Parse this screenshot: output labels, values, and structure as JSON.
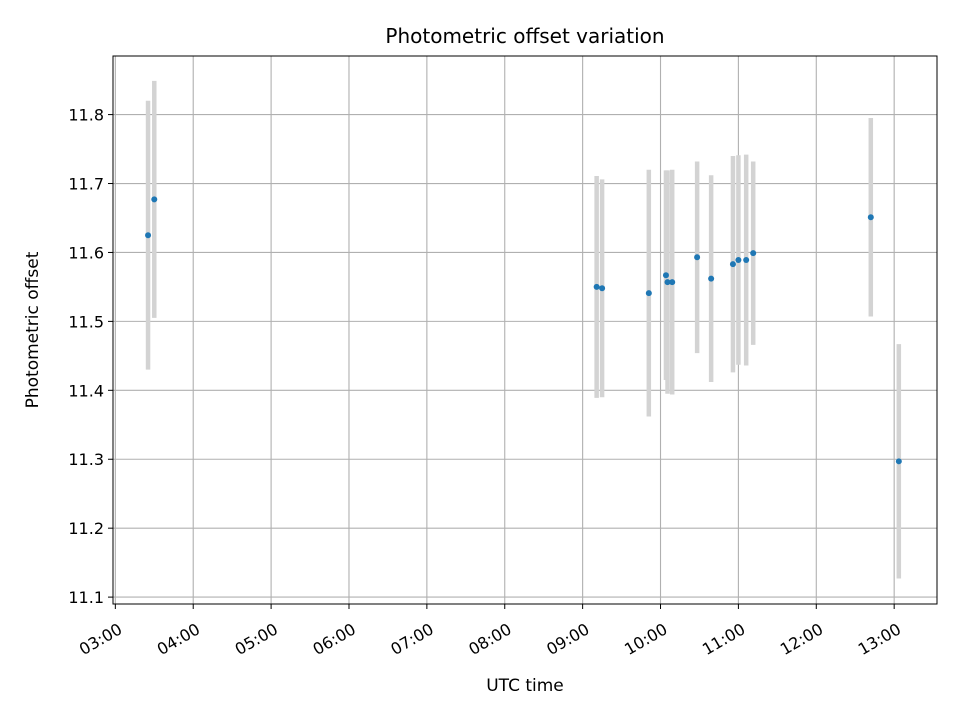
{
  "chart_data": {
    "type": "scatter",
    "title": "Photometric offset variation",
    "xlabel": "UTC time",
    "ylabel": "Photometric offset",
    "x_unit": "hour of day (UTC)",
    "xlim": [
      2.97,
      13.55
    ],
    "ylim": [
      11.09,
      11.885
    ],
    "x_ticks": [
      3,
      4,
      5,
      6,
      7,
      8,
      9,
      10,
      11,
      12,
      13
    ],
    "x_tick_labels": [
      "03:00",
      "04:00",
      "05:00",
      "06:00",
      "07:00",
      "08:00",
      "09:00",
      "10:00",
      "11:00",
      "12:00",
      "13:00"
    ],
    "y_ticks": [
      11.1,
      11.2,
      11.3,
      11.4,
      11.5,
      11.6,
      11.7,
      11.8
    ],
    "y_tick_labels": [
      "11.1",
      "11.2",
      "11.3",
      "11.4",
      "11.5",
      "11.6",
      "11.7",
      "11.8"
    ],
    "grid": true,
    "colors": {
      "points": "#1f77b4",
      "error_bars": "#d3d3d3",
      "grid": "#b0b0b0"
    },
    "series": [
      {
        "points": [
          {
            "x": 3.42,
            "y": 11.625,
            "yerr": 0.195
          },
          {
            "x": 3.5,
            "y": 11.677,
            "yerr": 0.172
          },
          {
            "x": 9.18,
            "y": 11.55,
            "yerr": 0.161
          },
          {
            "x": 9.25,
            "y": 11.548,
            "yerr": 0.158
          },
          {
            "x": 9.85,
            "y": 11.541,
            "yerr": 0.179
          },
          {
            "x": 10.07,
            "y": 11.567,
            "yerr": 0.152
          },
          {
            "x": 10.09,
            "y": 11.557,
            "yerr": 0.162
          },
          {
            "x": 10.15,
            "y": 11.557,
            "yerr": 0.163
          },
          {
            "x": 10.47,
            "y": 11.593,
            "yerr": 0.139
          },
          {
            "x": 10.65,
            "y": 11.562,
            "yerr": 0.15
          },
          {
            "x": 10.93,
            "y": 11.583,
            "yerr": 0.157
          },
          {
            "x": 11.0,
            "y": 11.589,
            "yerr": 0.152
          },
          {
            "x": 11.1,
            "y": 11.589,
            "yerr": 0.153
          },
          {
            "x": 11.19,
            "y": 11.599,
            "yerr": 0.133
          },
          {
            "x": 12.7,
            "y": 11.651,
            "yerr": 0.144
          },
          {
            "x": 13.06,
            "y": 11.297,
            "yerr": 0.17
          }
        ]
      }
    ]
  }
}
